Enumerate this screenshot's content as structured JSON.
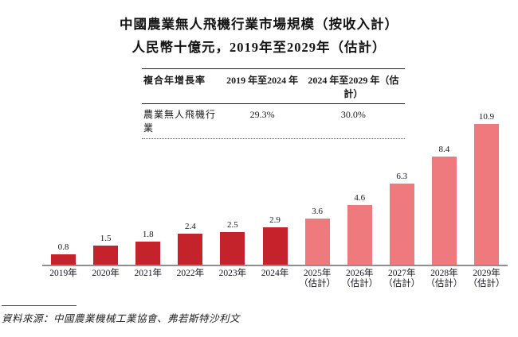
{
  "chart": {
    "title": "中國農業無人飛機行業市場規模（按收入計）",
    "subtitle": "人民幣十億元，2019年至2029年（估計）"
  },
  "cagr_table": {
    "headers": [
      "複合年增長率",
      "2019 年至2024 年",
      "2024 年至2029 年（估計）"
    ],
    "rows": [
      [
        "農業無人飛機行業",
        "29.3%",
        "30.0%"
      ]
    ]
  },
  "chart_data": {
    "type": "bar",
    "title": "中國農業無人飛機行業市場規模（按收入計）",
    "subtitle": "人民幣十億元，2019年至2029年（估計）",
    "unit": "人民幣十億元",
    "categories": [
      "2019年",
      "2020年",
      "2021年",
      "2022年",
      "2023年",
      "2024年",
      "2025年（估計）",
      "2026年（估計）",
      "2027年（估計）",
      "2028年（估計）",
      "2029年（估計）"
    ],
    "values": [
      0.8,
      1.5,
      1.8,
      2.4,
      2.5,
      2.9,
      3.6,
      4.6,
      6.3,
      8.4,
      10.9
    ],
    "estimate_start_index": 6,
    "colors": {
      "historical": "#c4232b",
      "estimate": "#ef7a7d",
      "axis": "#8f8f8f"
    },
    "ylim": [
      0,
      11.5
    ],
    "grid": false,
    "legend": false,
    "value_labels": true
  },
  "source": {
    "text": "資料來源：中國農業機械工業協會、弗若斯特沙利文"
  }
}
